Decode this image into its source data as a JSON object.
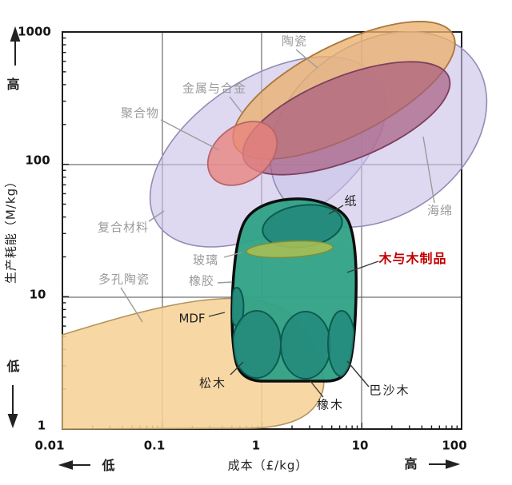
{
  "chart_data": {
    "type": "scatter",
    "title": "",
    "xlabel": "成本（£/kg）",
    "ylabel": "生产耗能（M/kg）",
    "x_scale": "log",
    "y_scale": "log",
    "xlim": [
      0.01,
      100
    ],
    "ylim": [
      1,
      1000
    ],
    "grid": true,
    "legend": false,
    "x_tick_labels": [
      "0.01",
      "0.1",
      "1",
      "10",
      "100"
    ],
    "y_tick_labels": [
      "1",
      "10",
      "100",
      "1000"
    ],
    "x_low_label": "低",
    "x_high_label": "高",
    "y_low_label": "低",
    "y_high_label": "高",
    "regions": {
      "ceramics": {
        "label": "陶瓷",
        "fill": "#eaaf6d",
        "cost_range": [
          0.5,
          90
        ],
        "energy_range": [
          130,
          1000
        ]
      },
      "metals_alloys": {
        "label": "金属与合金",
        "fill": "#a85c80",
        "cost_range": [
          0.7,
          70
        ],
        "energy_range": [
          90,
          600
        ]
      },
      "polymers": {
        "label": "聚合物",
        "fill": "#e88e8a",
        "cost_range": [
          0.3,
          1.4
        ],
        "energy_range": [
          75,
          190
        ]
      },
      "composites": {
        "label": "复合材料",
        "fill": "#c9c1e8",
        "cost_range": [
          0.09,
          12
        ],
        "energy_range": [
          40,
          450
        ]
      },
      "foam": {
        "label": "海绵",
        "fill": "#c9c1e8",
        "cost_range": [
          1.6,
          100
        ],
        "energy_range": [
          45,
          650
        ]
      },
      "porous_ceramics": {
        "label": "多孔陶瓷",
        "fill": "#f6d399",
        "cost_range": [
          0.01,
          4
        ],
        "energy_range": [
          1,
          10
        ]
      },
      "wood_products": {
        "label": "木与木制品",
        "fill": "#2fa186",
        "cost_range": [
          0.5,
          9
        ],
        "energy_range": [
          2.3,
          54
        ]
      },
      "paper": {
        "label": "纸",
        "fill": "#23897b",
        "cost_range": [
          1.0,
          6.5
        ],
        "energy_range": [
          24,
          49
        ]
      },
      "glass": {
        "label": "玻璃",
        "fill": "#aabf55",
        "cost_range": [
          0.7,
          5.3
        ],
        "energy_range": [
          20,
          26
        ]
      },
      "rubber": {
        "label": "橡胶",
        "fill": "#23897b",
        "cost_range": [
          0.48,
          0.66
        ],
        "energy_range": [
          6,
          12
        ]
      },
      "mdf": {
        "label": "MDF",
        "fill": "#23897b",
        "cost_range": [
          0.48,
          0.66
        ],
        "energy_range": [
          6,
          12
        ]
      },
      "pine": {
        "label": "松木",
        "fill": "#23897b",
        "cost_range": [
          0.5,
          1.6
        ],
        "energy_range": [
          2.4,
          7.8
        ]
      },
      "oak": {
        "label": "橡木",
        "fill": "#23897b",
        "cost_range": [
          1.6,
          4.9
        ],
        "energy_range": [
          2.4,
          7.7
        ]
      },
      "balsa": {
        "label": "巴沙木",
        "fill": "#23897b",
        "cost_range": [
          4.7,
          8.8
        ],
        "energy_range": [
          2.5,
          7.8
        ]
      }
    }
  }
}
